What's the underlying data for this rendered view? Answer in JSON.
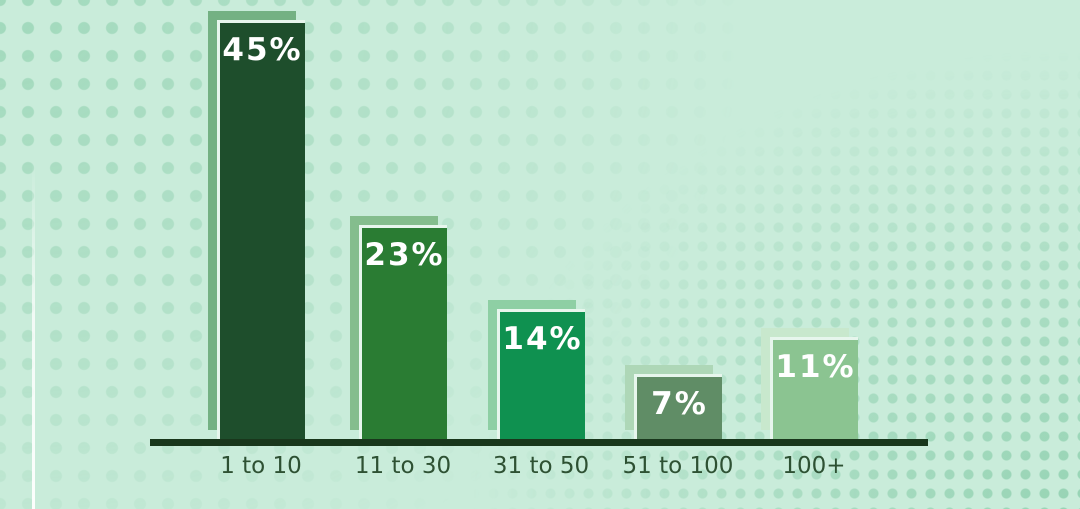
{
  "chart_data": {
    "type": "bar",
    "title": "",
    "xlabel": "",
    "ylabel": "",
    "categories": [
      "1 to 10",
      "11 to 30",
      "31 to 50",
      "51 to 100",
      "100+"
    ],
    "values": [
      45,
      23,
      14,
      7,
      11
    ],
    "value_labels": [
      "45%",
      "23%",
      "14%",
      "7%",
      "11%"
    ],
    "ylim": [
      0,
      48
    ],
    "grid": false,
    "legend": false,
    "bar_colors": [
      "#1e4e2c",
      "#2a7c33",
      "#0f9150",
      "#608d66",
      "#8bc491"
    ],
    "bar_shadow_colors": [
      "#74b183",
      "#84bd8d",
      "#8ecfa4",
      "#aed7b7",
      "#c8e8cd"
    ],
    "axis_color": "#19371c",
    "category_label_color": "#2e5133",
    "value_label_color": "#ffffff",
    "background_color": "#c9ecda",
    "dot_pattern_color": "#7ac69e"
  }
}
